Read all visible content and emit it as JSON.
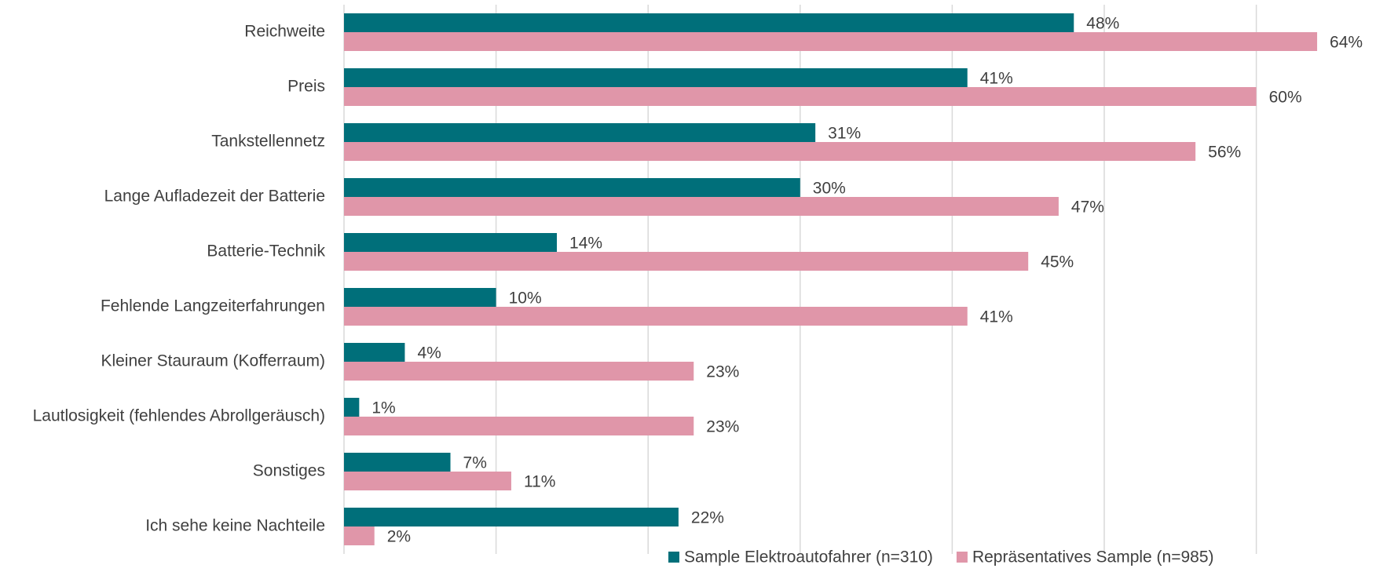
{
  "chart_data": {
    "type": "hbar",
    "categories": [
      "Reichweite",
      "Preis",
      "Tankstellennetz",
      "Lange Aufladezeit der Batterie",
      "Batterie-Technik",
      "Fehlende Langzeiterfahrungen",
      "Kleiner Stauraum (Kofferraum)",
      "Lautlosigkeit (fehlendes Abrollgeräusch)",
      "Sonstiges",
      "Ich sehe keine Nachteile"
    ],
    "series": [
      {
        "name": "Sample Elektroautofahrer (n=310)",
        "color": "#006f7a",
        "values": [
          48,
          41,
          31,
          30,
          14,
          10,
          4,
          1,
          7,
          22
        ],
        "value_labels": [
          "48%",
          "41%",
          "31%",
          "30%",
          "14%",
          "10%",
          "4%",
          "1%",
          "7%",
          "22%"
        ]
      },
      {
        "name": "Repräsentatives Sample (n=985)",
        "color": "#e096a9",
        "values": [
          64,
          60,
          56,
          47,
          45,
          41,
          23,
          23,
          11,
          2
        ],
        "value_labels": [
          "64%",
          "60%",
          "56%",
          "47%",
          "45%",
          "41%",
          "23%",
          "23%",
          "11%",
          "2%"
        ]
      }
    ],
    "xlim": [
      0,
      65
    ],
    "xticks": [
      0,
      10,
      20,
      30,
      40,
      50,
      60
    ],
    "grid": true,
    "legend": "bottom"
  }
}
